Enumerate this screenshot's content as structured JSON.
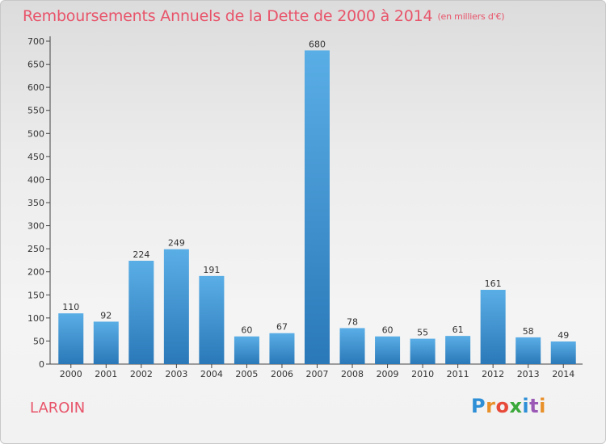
{
  "chart_data": {
    "type": "bar",
    "title": "Remboursements Annuels de la Dette de 2000 à 2014",
    "subtitle": "(en milliers d'€)",
    "categories": [
      "2000",
      "2001",
      "2002",
      "2003",
      "2004",
      "2005",
      "2006",
      "2007",
      "2008",
      "2009",
      "2010",
      "2011",
      "2012",
      "2013",
      "2014"
    ],
    "values": [
      110,
      92,
      224,
      249,
      191,
      60,
      67,
      680,
      78,
      60,
      55,
      61,
      161,
      58,
      49
    ],
    "ylim": [
      0,
      700
    ],
    "yticks": [
      0,
      50,
      100,
      150,
      200,
      250,
      300,
      350,
      400,
      450,
      500,
      550,
      600,
      650,
      700
    ],
    "grid": false,
    "data_labels": true,
    "bar_color": "#3a8fd0"
  },
  "footer": {
    "place": "LAROIN",
    "logo_letters": [
      "P",
      "r",
      "o",
      "x",
      "i",
      "t",
      "i"
    ]
  },
  "colors": {
    "title": "#e8546a",
    "bar_top": "#5aaee6",
    "bar_bottom": "#2a78b8"
  }
}
